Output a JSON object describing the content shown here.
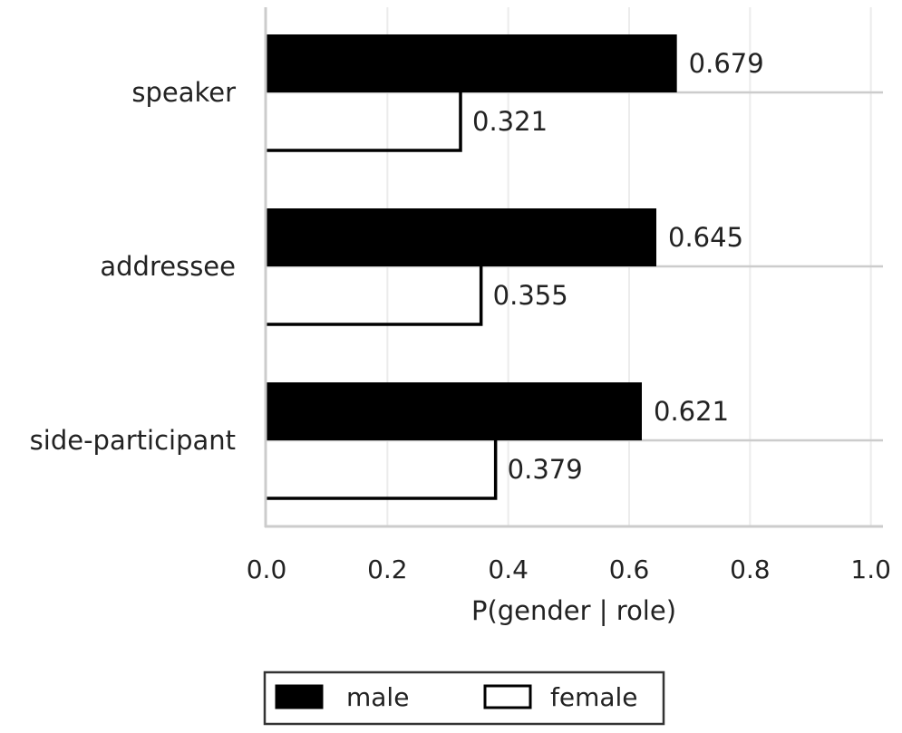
{
  "chart_data": {
    "type": "bar",
    "orientation": "horizontal",
    "categories": [
      "speaker",
      "addressee",
      "side-participant"
    ],
    "series": [
      {
        "name": "male",
        "values": [
          0.679,
          0.645,
          0.621
        ],
        "fill": "#000000",
        "stroke": "#000000"
      },
      {
        "name": "female",
        "values": [
          0.321,
          0.355,
          0.379
        ],
        "fill": "#ffffff",
        "stroke": "#000000"
      }
    ],
    "data_labels": {
      "male": [
        "0.679",
        "0.645",
        "0.621"
      ],
      "female": [
        "0.321",
        "0.355",
        "0.379"
      ]
    },
    "xlabel": "P(gender | role)",
    "ylabel": "",
    "xlim": [
      0.0,
      1.02
    ],
    "xticks": [
      0.0,
      0.2,
      0.4,
      0.6,
      0.8,
      1.0
    ],
    "xtick_labels": [
      "0.0",
      "0.2",
      "0.4",
      "0.6",
      "0.8",
      "1.0"
    ],
    "grid": true,
    "legend_position": "bottom-center",
    "legend": [
      "male",
      "female"
    ]
  }
}
